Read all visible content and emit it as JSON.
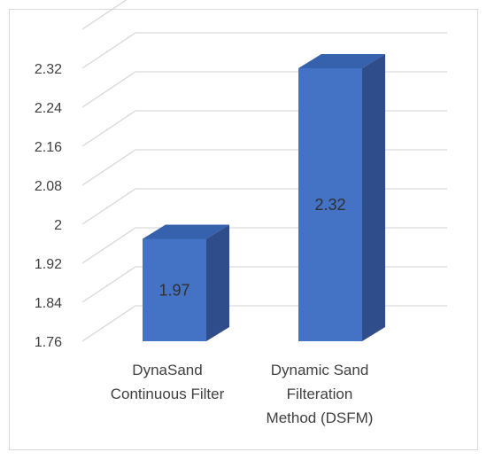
{
  "chart_data": {
    "type": "bar",
    "style": "3d-column",
    "categories": [
      [
        "DynaSand",
        "Continuous Filter"
      ],
      [
        "Dynamic Sand",
        "Filteration",
        "Method (DSFM)"
      ]
    ],
    "values": [
      1.97,
      2.32
    ],
    "value_labels": [
      "1.97",
      "2.32"
    ],
    "yticks": [
      "1.76",
      "1.84",
      "1.92",
      "2",
      "2.08",
      "2.16",
      "2.24",
      "2.32"
    ],
    "ylim": [
      1.76,
      2.4
    ],
    "grid": true,
    "legend": "none",
    "title": "",
    "xlabel": "",
    "ylabel": "",
    "colors": {
      "front": "#4472c4",
      "side": "#2e4d8a",
      "top": "#3561ad",
      "grid": "#d9d9d9"
    }
  }
}
